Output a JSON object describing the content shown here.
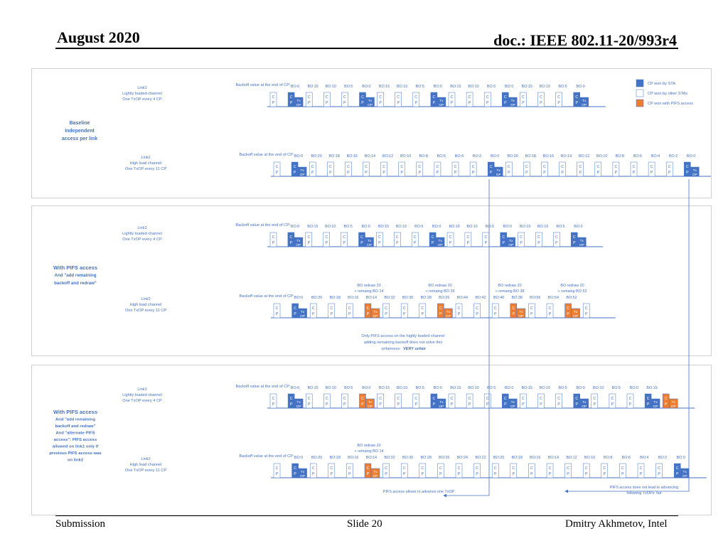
{
  "header": {
    "date": "August 2020",
    "doc": "doc.: IEEE 802.11-20/993r4"
  },
  "footer": {
    "left": "Submission",
    "center": "Slide 20",
    "right": "Dmitry Akhmetov, Intel"
  },
  "legend": [
    {
      "label": "CP won by STA",
      "color": "#4472c4"
    },
    {
      "label": "CP won by other STAs",
      "color": "#ffffff"
    },
    {
      "label": "CP won with PIFS access",
      "color": "#ed7d31"
    }
  ],
  "labels": {
    "backoff": "Backoff value at the end of CP:",
    "cp_top": "C",
    "cp_bot": "P",
    "tx_top": "Tx",
    "tx_bot": "OP"
  },
  "panels": [
    {
      "title": [
        "Baseline",
        "Independent",
        "access per link"
      ],
      "rows": [
        {
          "desc": [
            "Link1",
            "Lightly loaded channel",
            "One TxOP every 4 CP"
          ],
          "bo": [
            "BO:0",
            "BO:15",
            "BO:10",
            "BO:5",
            "BO:0",
            "BO:15",
            "BO:10",
            "BO:5",
            "BO:0",
            "BO:15",
            "BO:10",
            "BO:5",
            "BO:0",
            "BO:15",
            "BO:10",
            "BO:5",
            "BO:0"
          ],
          "slots": [
            "w",
            "b",
            "w",
            "w",
            "w",
            "b",
            "w",
            "w",
            "w",
            "b",
            "w",
            "w",
            "w",
            "b",
            "w",
            "w",
            "w",
            "b"
          ]
        },
        {
          "desc": [
            "Link2",
            "High load channel",
            "One TxOP every 11 CP"
          ],
          "bo": [
            "BO:0",
            "BO:20",
            "BO:18",
            "BO:16",
            "BO:14",
            "BO:12",
            "BO:10",
            "BO:8",
            "BO:6",
            "BO:4",
            "BO:2",
            "BO:0",
            "BO:20",
            "BO:18",
            "BO:16",
            "BO:14",
            "BO:12",
            "BO:10",
            "BO:8",
            "BO:6",
            "BO:4",
            "BO:2",
            "BO:0"
          ],
          "slots": [
            "w",
            "b",
            "w",
            "w",
            "w",
            "w",
            "w",
            "w",
            "w",
            "w",
            "w",
            "w",
            "b",
            "w",
            "w",
            "w",
            "w",
            "w",
            "w",
            "w",
            "w",
            "w",
            "w",
            "b"
          ]
        }
      ]
    },
    {
      "title": [
        "With PIFS access",
        "And \"add remaining",
        "backoff and redraw\""
      ],
      "rows": [
        {
          "desc": [
            "Link1",
            "Lightly loaded channel",
            "One TxOP every 4 CP"
          ],
          "bo": [
            "BO:0",
            "BO:15",
            "BO:10",
            "BO:5",
            "BO:0",
            "BO:15",
            "BO:10",
            "BO:5",
            "BO:0",
            "BO:15",
            "BO:10",
            "BO:5",
            "BO:0",
            "BO:15",
            "BO:10",
            "BO:5",
            "BO:0"
          ],
          "slots": [
            "w",
            "b",
            "w",
            "w",
            "w",
            "b",
            "w",
            "w",
            "w",
            "b",
            "w",
            "w",
            "w",
            "b",
            "w",
            "w",
            "w",
            "b"
          ]
        },
        {
          "desc": [
            "Link2",
            "High load channel",
            "One TxOP every 11 CP"
          ],
          "bo": [
            "BO:0",
            "BO:20",
            "BO:18",
            "BO:16",
            "BO:14",
            "BO:32",
            "BO:30",
            "BO:28",
            "BO:26",
            "BO:44",
            "BO:42",
            "BO:40",
            "BO:38",
            "BO:56",
            "BO:54",
            "BO:52"
          ],
          "slots": [
            "w",
            "b",
            "w",
            "w",
            "w",
            "o",
            "w",
            "w",
            "w",
            "o",
            "w",
            "w",
            "w",
            "o",
            "w",
            "w",
            "o",
            "w"
          ]
        }
      ],
      "redraw_notes": [
        [
          "BO redraw 20",
          "+ remaing BO 14"
        ],
        [
          "BO redraw 20",
          "+ remaing BO 26"
        ],
        [
          "BO redraw 20",
          "+ remaing BO 38"
        ],
        [
          "BO redraw 20",
          "+ remaing BO 52"
        ]
      ],
      "note": [
        "Only PIFS access on the highly loaded channel",
        "adding remaining backoff does not solve this",
        "unfairness: "
      ],
      "note_bold": "VERY unfair"
    },
    {
      "title": [
        "With PIFS access",
        "And \"add remaining",
        "backoff and redraw\"",
        "And \"alternate PIFS",
        "access\": PIFS access",
        "allowed on link1 only if",
        "previous PIFS access was",
        "on link2"
      ],
      "rows": [
        {
          "desc": [
            "Link1",
            "Lightly loaded channel",
            "One TxOP every 4 CP"
          ],
          "bo": [
            "BO:0",
            "BO:15",
            "BO:10",
            "BO:5",
            "BO:0",
            "BO:15",
            "BO:10",
            "BO:5",
            "BO:0",
            "BO:15",
            "BO:10",
            "BO:5",
            "BO:0",
            "BO:15",
            "BO:10",
            "BO:5",
            "BO:0",
            "BO:10",
            "BO:5",
            "BO:0",
            "BO:15"
          ],
          "slots": [
            "w",
            "b",
            "w",
            "w",
            "w",
            "o",
            "w",
            "w",
            "w",
            "b",
            "w",
            "w",
            "w",
            "b",
            "w",
            "w",
            "w",
            "b",
            "w",
            "w",
            "w",
            "b",
            "o"
          ]
        },
        {
          "desc": [
            "Link2",
            "High load channel",
            "One TxOP every 11 CP"
          ],
          "bo": [
            "BO:0",
            "BO:20",
            "BO:18",
            "BO:16",
            "BO:14",
            "BO:32",
            "BO:30",
            "BO:28",
            "BO:26",
            "BO:24",
            "BO:22",
            "BO:20",
            "BO:18",
            "BO:16",
            "BO:14",
            "BO:12",
            "BO:10",
            "BO:8",
            "BO:6",
            "BO:4",
            "BO:2",
            "BO:0"
          ],
          "slots": [
            "w",
            "b",
            "w",
            "w",
            "w",
            "o",
            "w",
            "w",
            "w",
            "w",
            "w",
            "w",
            "w",
            "w",
            "w",
            "w",
            "w",
            "w",
            "w",
            "w",
            "w",
            "w",
            "b"
          ]
        }
      ],
      "redraw_note": [
        "BO redraw 20",
        "+ remaing BO 14"
      ],
      "note_left": "PIFS access allows to advance one TxOP",
      "note_right": [
        "PIFS access does not lead to advancing",
        "following TxOPs: fair"
      ]
    }
  ]
}
